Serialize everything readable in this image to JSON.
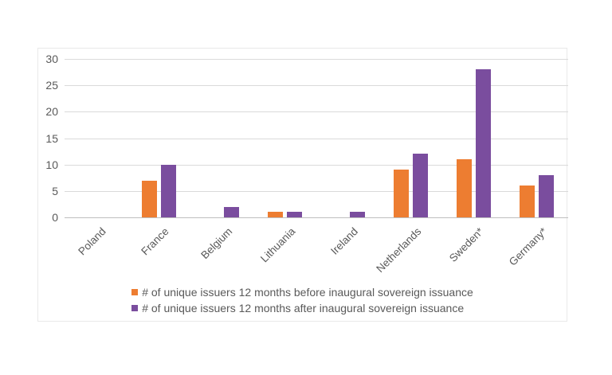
{
  "chart_data": {
    "type": "bar",
    "title": "",
    "xlabel": "",
    "ylabel": "",
    "categories": [
      "Poland",
      "France",
      "Belgium",
      "Lithuania",
      "Ireland",
      "Netherlands",
      "Sweden*",
      "Germany*"
    ],
    "series": [
      {
        "name": "# of unique issuers 12 months before inaugural sovereign issuance",
        "color": "#ED7D31",
        "values": [
          0,
          7,
          0,
          1,
          0,
          9,
          11,
          6
        ]
      },
      {
        "name": "# of unique issuers 12 months after inaugural sovereign issuance",
        "color": "#7A4D9E",
        "values": [
          0,
          10,
          2,
          1,
          1,
          12,
          28,
          8
        ]
      }
    ],
    "ylim": [
      0,
      30
    ],
    "yticks": [
      0,
      5,
      10,
      15,
      20,
      25,
      30
    ],
    "grid": true,
    "legend_position": "bottom-inside",
    "colors": {
      "axis_text": "#595959",
      "gridline": "#dadada",
      "axis_line": "#bfbfbf",
      "panel_border": "#e9e9e9",
      "background": "#ffffff"
    }
  }
}
